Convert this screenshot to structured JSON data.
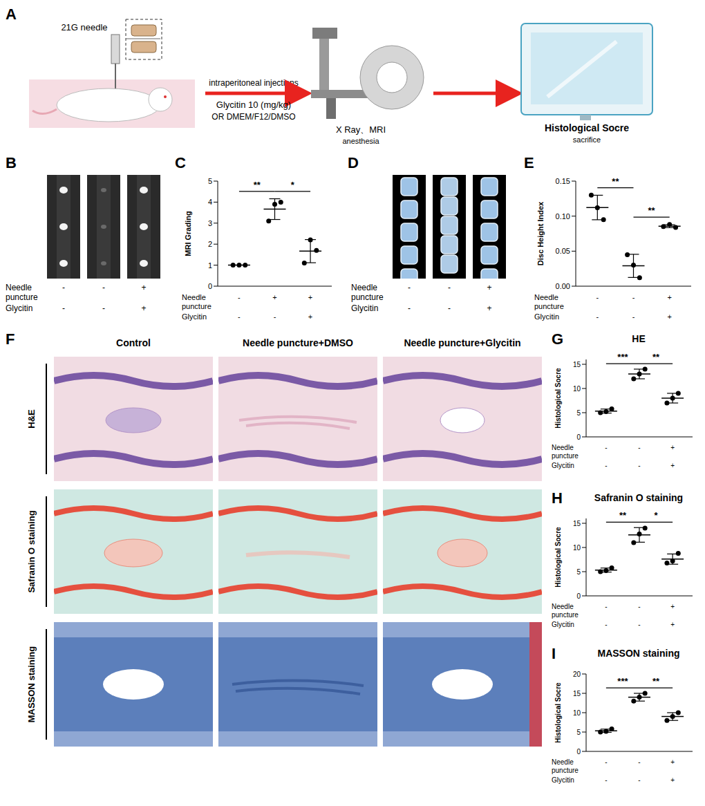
{
  "figure": {
    "schematic": {
      "label": "A",
      "needle": "21G needle",
      "route": "intraperitoneal injections",
      "treatment": "Glycitin 10 (mg/kg)",
      "vehicle": "OR DMEM/F12/DMSO",
      "imaging": "X Ray、MRI",
      "imaging_note": "anesthesia",
      "analysis": "Histological Socre",
      "analysis_note": "sacrifice"
    },
    "images": [
      {
        "label": "B",
        "conditions": [
          {
            "label": "Needle puncture",
            "signs": [
              "-",
              "-",
              "+"
            ]
          },
          {
            "label": "Glycitin",
            "signs": [
              "-",
              "-",
              "+"
            ]
          }
        ]
      },
      {
        "label": "D",
        "conditions": [
          {
            "label": "Needle puncture",
            "signs": [
              "-",
              "-",
              "+"
            ]
          },
          {
            "label": "Glycitin",
            "signs": [
              "-",
              "-",
              "+"
            ]
          }
        ]
      }
    ],
    "histology": {
      "label": "F",
      "columns": [
        "Control",
        "Needle puncture+DMSO",
        "Needle puncture+Glycitin"
      ],
      "rows": [
        "H&E",
        "Safranin O staining",
        "MASSON staining"
      ]
    }
  },
  "chart_data": [
    {
      "label": "C",
      "type": "scatter",
      "y_label": "MRI Grading",
      "ylim": [
        0,
        5
      ],
      "yticks": [
        0,
        1,
        2,
        3,
        4,
        5
      ],
      "tick_labels": "y",
      "color": "#000000",
      "series": [
        {
          "values": [
            1,
            1,
            1
          ]
        },
        {
          "values": [
            3.1,
            3.9,
            4.0
          ]
        },
        {
          "values": [
            1.1,
            2.2,
            1.7
          ]
        }
      ],
      "significance": [
        {
          "groups": [
            0,
            1
          ],
          "label": "**"
        },
        {
          "groups": [
            1,
            2
          ],
          "label": "*"
        }
      ],
      "conditions": [
        {
          "label": "Needle puncture",
          "signs": [
            "-",
            "+",
            "+"
          ]
        },
        {
          "label": "Glycitin",
          "signs": [
            "-",
            "-",
            "+"
          ]
        }
      ]
    },
    {
      "label": "E",
      "type": "scatter",
      "y_label": "Disc Height Index",
      "ylim": [
        0,
        0.15
      ],
      "yticks": [
        {
          "value": 0,
          "label": "0.00"
        },
        0.05,
        {
          "value": 0.1,
          "label": "0.10"
        },
        0.15
      ],
      "tick_labels": "y",
      "color": "#000000",
      "series": [
        {
          "values": [
            0.13,
            0.112,
            0.095
          ]
        },
        {
          "values": [
            0.045,
            0.03,
            0.012
          ]
        },
        {
          "values": [
            0.085,
            0.088,
            0.084
          ]
        }
      ],
      "significance": [
        {
          "groups": [
            0,
            1
          ],
          "label": "**"
        },
        {
          "groups": [
            1,
            2
          ],
          "label": "**"
        }
      ],
      "conditions": [
        {
          "label": "Needle puncture",
          "signs": [
            "-",
            "-",
            "+"
          ]
        },
        {
          "label": "Glycitin",
          "signs": [
            "-",
            "-",
            "+"
          ]
        }
      ]
    },
    {
      "label": "G",
      "type": "scatter",
      "title": "HE",
      "y_label": "Histological Socre",
      "ylim": [
        0,
        16
      ],
      "yticks": [
        0,
        5,
        10,
        15
      ],
      "tick_labels": "y",
      "color": "#000000",
      "series": [
        {
          "values": [
            5,
            5.2,
            5.8
          ]
        },
        {
          "values": [
            12,
            13,
            14
          ]
        },
        {
          "values": [
            7,
            8,
            9
          ]
        }
      ],
      "significance": [
        {
          "groups": [
            0,
            1
          ],
          "label": "***"
        },
        {
          "groups": [
            1,
            2
          ],
          "label": "**"
        }
      ],
      "conditions": [
        {
          "label": "Needle puncture",
          "signs": [
            "-",
            "-",
            "+"
          ]
        },
        {
          "label": "Glycitin",
          "signs": [
            "-",
            "-",
            "+"
          ]
        }
      ]
    },
    {
      "label": "H",
      "type": "scatter",
      "title": "Safranin O staining",
      "y_label": "Histological Socre",
      "ylim": [
        0,
        16
      ],
      "yticks": [
        0,
        5,
        10,
        15
      ],
      "tick_labels": "y",
      "color": "#000000",
      "series": [
        {
          "values": [
            5,
            5.2,
            5.8
          ]
        },
        {
          "values": [
            11,
            12.8,
            14
          ]
        },
        {
          "values": [
            6.8,
            7.2,
            8.8
          ]
        }
      ],
      "significance": [
        {
          "groups": [
            0,
            1
          ],
          "label": "**"
        },
        {
          "groups": [
            1,
            2
          ],
          "label": "*"
        }
      ],
      "conditions": [
        {
          "label": "Needle puncture",
          "signs": [
            "-",
            "-",
            "+"
          ]
        },
        {
          "label": "Glycitin",
          "signs": [
            "-",
            "-",
            "+"
          ]
        }
      ]
    },
    {
      "label": "I",
      "type": "scatter",
      "title": "MASSON staining",
      "y_label": "Histological Socre",
      "ylim": [
        0,
        20
      ],
      "yticks": [
        0,
        5,
        10,
        15,
        20
      ],
      "tick_labels": "y",
      "color": "#000000",
      "series": [
        {
          "values": [
            5,
            5.2,
            5.8
          ]
        },
        {
          "values": [
            13,
            14,
            15
          ]
        },
        {
          "values": [
            8,
            9,
            10
          ]
        }
      ],
      "significance": [
        {
          "groups": [
            0,
            1
          ],
          "label": "***"
        },
        {
          "groups": [
            1,
            2
          ],
          "label": "**"
        }
      ],
      "conditions": [
        {
          "label": "Needle puncture",
          "signs": [
            "-",
            "-",
            "+"
          ]
        },
        {
          "label": "Glycitin",
          "signs": [
            "-",
            "-",
            "+"
          ]
        }
      ]
    }
  ]
}
